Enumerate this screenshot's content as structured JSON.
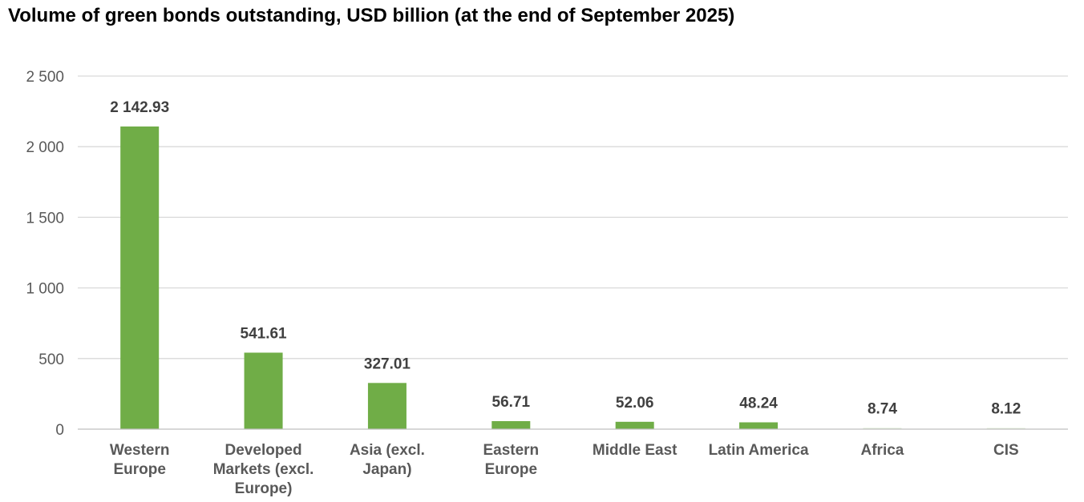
{
  "chart_data": {
    "type": "bar",
    "title": "Volume of green bonds outstanding, USD billion (at the end of September 2025)",
    "xlabel": "",
    "ylabel": "",
    "ylim": [
      0,
      2500
    ],
    "yticks": [
      0,
      500,
      1000,
      1500,
      2000,
      2500
    ],
    "ytick_labels": [
      "0",
      "500",
      "1 000",
      "1 500",
      "2 000",
      "2 500"
    ],
    "grid": true,
    "legend": "none",
    "categories": [
      [
        "Western",
        "Europe"
      ],
      [
        "Developed",
        "Markets (excl.",
        "Europe)"
      ],
      [
        "Asia (excl.",
        "Japan)"
      ],
      [
        "Eastern",
        "Europe"
      ],
      [
        "Middle East"
      ],
      [
        "Latin America"
      ],
      [
        "Africa"
      ],
      [
        "CIS"
      ]
    ],
    "values": [
      2142.93,
      541.61,
      327.01,
      56.71,
      52.06,
      48.24,
      8.74,
      8.12
    ],
    "value_labels": [
      "2 142.93",
      "541.61",
      "327.01",
      "56.71",
      "52.06",
      "48.24",
      "8.74",
      "8.12"
    ],
    "colors": {
      "bar": "#70ad47",
      "grid": "#d9d9d9",
      "axis": "#bfbfbf"
    }
  }
}
